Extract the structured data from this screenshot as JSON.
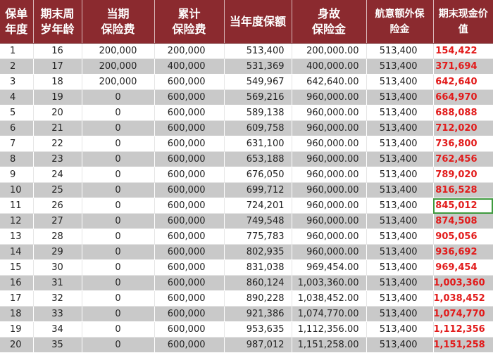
{
  "headers": [
    "保单\n年度",
    "期末周\n岁年龄",
    "当期\n保险费",
    "累计\n保险费",
    "当年度保额",
    "身故\n保险金",
    "航意额外保\n险金",
    "期末现金价\n值"
  ],
  "rows": [
    [
      "1",
      "16",
      "200,000",
      "200,000",
      "513,400",
      "200,000.00",
      "513,400",
      "154,422"
    ],
    [
      "2",
      "17",
      "200,000",
      "400,000",
      "531,369",
      "400,000.00",
      "513,400",
      "371,694"
    ],
    [
      "3",
      "18",
      "200,000",
      "600,000",
      "549,967",
      "642,640.00",
      "513,400",
      "642,640"
    ],
    [
      "4",
      "19",
      "0",
      "600,000",
      "569,216",
      "960,000.00",
      "513,400",
      "664,970"
    ],
    [
      "5",
      "20",
      "0",
      "600,000",
      "589,138",
      "960,000.00",
      "513,400",
      "688,088"
    ],
    [
      "6",
      "21",
      "0",
      "600,000",
      "609,758",
      "960,000.00",
      "513,400",
      "712,020"
    ],
    [
      "7",
      "22",
      "0",
      "600,000",
      "631,100",
      "960,000.00",
      "513,400",
      "736,800"
    ],
    [
      "8",
      "23",
      "0",
      "600,000",
      "653,188",
      "960,000.00",
      "513,400",
      "762,456"
    ],
    [
      "9",
      "24",
      "0",
      "600,000",
      "676,050",
      "960,000.00",
      "513,400",
      "789,020"
    ],
    [
      "10",
      "25",
      "0",
      "600,000",
      "699,712",
      "960,000.00",
      "513,400",
      "816,528"
    ],
    [
      "11",
      "26",
      "0",
      "600,000",
      "724,201",
      "960,000.00",
      "513,400",
      "845,012"
    ],
    [
      "12",
      "27",
      "0",
      "600,000",
      "749,548",
      "960,000.00",
      "513,400",
      "874,508"
    ],
    [
      "13",
      "28",
      "0",
      "600,000",
      "775,783",
      "960,000.00",
      "513,400",
      "905,056"
    ],
    [
      "14",
      "29",
      "0",
      "600,000",
      "802,935",
      "960,000.00",
      "513,400",
      "936,692"
    ],
    [
      "15",
      "30",
      "0",
      "600,000",
      "831,038",
      "969,454.00",
      "513,400",
      "969,454"
    ],
    [
      "16",
      "31",
      "0",
      "600,000",
      "860,124",
      "1,003,360.00",
      "513,400",
      "1,003,360"
    ],
    [
      "17",
      "32",
      "0",
      "600,000",
      "890,228",
      "1,038,452.00",
      "513,400",
      "1,038,452"
    ],
    [
      "18",
      "33",
      "0",
      "600,000",
      "921,386",
      "1,074,770.00",
      "513,400",
      "1,074,770"
    ],
    [
      "19",
      "34",
      "0",
      "600,000",
      "953,635",
      "1,112,356.00",
      "513,400",
      "1,112,356"
    ],
    [
      "20",
      "35",
      "0",
      "600,000",
      "987,012",
      "1,151,258.00",
      "513,400",
      "1,151,258"
    ]
  ],
  "selected_cell": {
    "row": 11,
    "column": "期末现金价\n值"
  },
  "colors": {
    "header_bg": "#8b2a2f",
    "header_text": "#ffffff",
    "stripe": "#c9c9c9",
    "cash_value_text": "#e21b1b",
    "selection": "#3f9b3f"
  }
}
